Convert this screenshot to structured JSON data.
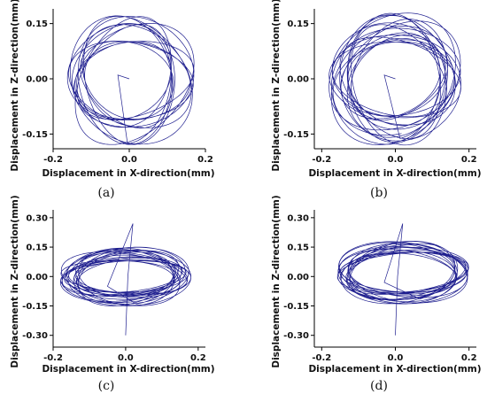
{
  "chart_data": [
    {
      "type": "line",
      "panel_label": "(a)",
      "xlabel": "Displacement in X-direction(mm)",
      "ylabel": "Displacement in Z-direction(mm)",
      "xlim": [
        -0.2,
        0.2
      ],
      "ylim": [
        -0.19,
        0.19
      ],
      "xticks": [
        -0.2,
        0.0,
        0.2
      ],
      "xtick_labels": [
        "-0.2",
        "0.0",
        "0.2"
      ],
      "yticks": [
        -0.15,
        0.0,
        0.15
      ],
      "ytick_labels": [
        "-0.15",
        "0.00",
        "0.15"
      ],
      "grid": false,
      "line_color": "#1f1f8f",
      "orbit": {
        "cx": 0.0,
        "cz": 0.0,
        "rx_min": 0.11,
        "rx_max": 0.17,
        "rz_min": 0.1,
        "rz_max": 0.18,
        "turns": 14,
        "start": [
          0.0,
          0.0
        ]
      }
    },
    {
      "type": "line",
      "panel_label": "(b)",
      "xlabel": "Displacement in X-direction(mm)",
      "ylabel": "Displacement in Z-direction(mm)",
      "xlim": [
        -0.22,
        0.22
      ],
      "ylim": [
        -0.19,
        0.19
      ],
      "xticks": [
        -0.2,
        0.0,
        0.2
      ],
      "xtick_labels": [
        "-0.2",
        "0.0",
        "0.2"
      ],
      "yticks": [
        -0.15,
        0.0,
        0.15
      ],
      "ytick_labels": [
        "-0.15",
        "0.00",
        "0.15"
      ],
      "grid": false,
      "line_color": "#1f1f8f",
      "orbit": {
        "cx": 0.0,
        "cz": 0.0,
        "rx_min": 0.12,
        "rx_max": 0.18,
        "rz_min": 0.1,
        "rz_max": 0.18,
        "turns": 18,
        "start": [
          0.0,
          0.0
        ]
      }
    },
    {
      "type": "line",
      "panel_label": "(c)",
      "xlabel": "Displacement in X-direction(mm)",
      "ylabel": "Displacement in Z-direction(mm)",
      "xlim": [
        -0.2,
        0.22
      ],
      "ylim": [
        -0.36,
        0.34
      ],
      "xticks": [
        -0.2,
        0.0,
        0.2
      ],
      "xtick_labels": [
        "-0.2",
        "0.0",
        "0.2"
      ],
      "yticks": [
        -0.3,
        -0.15,
        0.0,
        0.15,
        0.3
      ],
      "ytick_labels": [
        "-0.30",
        "-0.15",
        "0.00",
        "0.15",
        "0.30"
      ],
      "grid": false,
      "line_color": "#1f1f8f",
      "orbit": {
        "cx": 0.0,
        "cz": 0.0,
        "rx_min": 0.13,
        "rx_max": 0.18,
        "rz_min": 0.08,
        "rz_max": 0.15,
        "turns": 20,
        "start": [
          0.0,
          -0.3
        ],
        "spike_end": [
          0.02,
          0.27
        ]
      }
    },
    {
      "type": "line",
      "panel_label": "(d)",
      "xlabel": "Displacement in X-direction(mm)",
      "ylabel": "Displacement in Z-direction(mm)",
      "xlim": [
        -0.22,
        0.22
      ],
      "ylim": [
        -0.36,
        0.34
      ],
      "xticks": [
        -0.2,
        0.0,
        0.2
      ],
      "xtick_labels": [
        "-0.2",
        "0.0",
        "0.2"
      ],
      "yticks": [
        -0.3,
        -0.15,
        0.0,
        0.15,
        0.3
      ],
      "ytick_labels": [
        "-0.30",
        "-0.15",
        "0.00",
        "0.15",
        "0.30"
      ],
      "grid": false,
      "line_color": "#1f1f8f",
      "orbit": {
        "cx": 0.02,
        "cz": 0.02,
        "rx_min": 0.14,
        "rx_max": 0.18,
        "rz_min": 0.1,
        "rz_max": 0.16,
        "turns": 18,
        "start": [
          0.0,
          -0.3
        ],
        "spike_end": [
          0.02,
          0.27
        ]
      }
    }
  ]
}
